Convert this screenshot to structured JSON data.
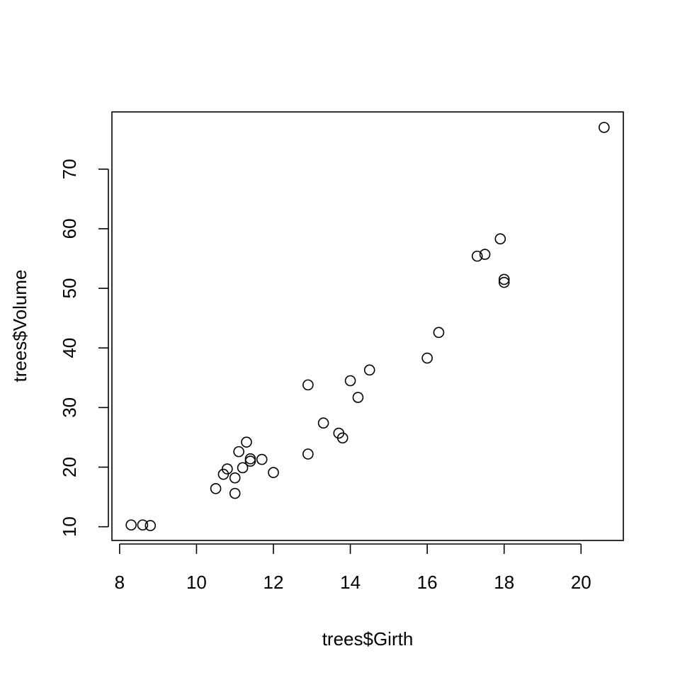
{
  "chart_data": {
    "type": "scatter",
    "title": "",
    "xlabel": "trees$Girth",
    "ylabel": "trees$Volume",
    "xlim": [
      7.8,
      21.1
    ],
    "ylim": [
      7.7,
      79.6
    ],
    "grid": false,
    "legend": "none",
    "x_ticks": [
      8,
      10,
      12,
      14,
      16,
      18,
      20
    ],
    "y_ticks": [
      10,
      20,
      30,
      40,
      50,
      60,
      70
    ],
    "marker": "open-circle",
    "points": [
      {
        "x": 8.3,
        "y": 10.3
      },
      {
        "x": 8.6,
        "y": 10.3
      },
      {
        "x": 8.8,
        "y": 10.2
      },
      {
        "x": 10.5,
        "y": 16.4
      },
      {
        "x": 10.7,
        "y": 18.8
      },
      {
        "x": 10.8,
        "y": 19.7
      },
      {
        "x": 11.0,
        "y": 15.6
      },
      {
        "x": 11.0,
        "y": 18.2
      },
      {
        "x": 11.1,
        "y": 22.6
      },
      {
        "x": 11.2,
        "y": 19.9
      },
      {
        "x": 11.3,
        "y": 24.2
      },
      {
        "x": 11.4,
        "y": 21.0
      },
      {
        "x": 11.4,
        "y": 21.4
      },
      {
        "x": 11.7,
        "y": 21.3
      },
      {
        "x": 12.0,
        "y": 19.1
      },
      {
        "x": 12.9,
        "y": 22.2
      },
      {
        "x": 12.9,
        "y": 33.8
      },
      {
        "x": 13.3,
        "y": 27.4
      },
      {
        "x": 13.7,
        "y": 25.7
      },
      {
        "x": 13.8,
        "y": 24.9
      },
      {
        "x": 14.0,
        "y": 34.5
      },
      {
        "x": 14.2,
        "y": 31.7
      },
      {
        "x": 14.5,
        "y": 36.3
      },
      {
        "x": 16.0,
        "y": 38.3
      },
      {
        "x": 16.3,
        "y": 42.6
      },
      {
        "x": 17.3,
        "y": 55.4
      },
      {
        "x": 17.5,
        "y": 55.7
      },
      {
        "x": 17.9,
        "y": 58.3
      },
      {
        "x": 18.0,
        "y": 51.5
      },
      {
        "x": 18.0,
        "y": 51.0
      },
      {
        "x": 20.6,
        "y": 77.0
      }
    ]
  }
}
